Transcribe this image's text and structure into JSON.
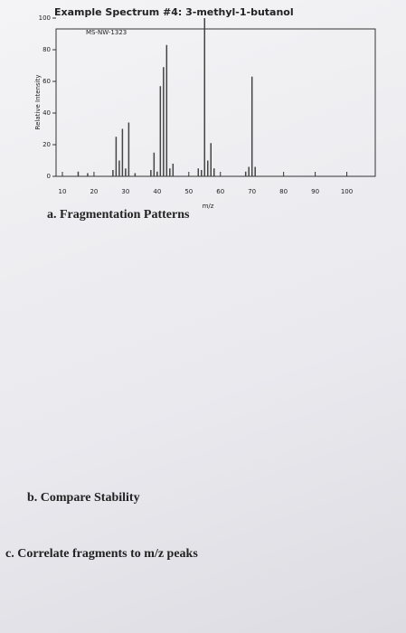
{
  "header": {
    "title": "Example Spectrum #4: 3-methyl-1-butanol"
  },
  "chart_data": {
    "type": "bar",
    "code": "MS-NW-1323",
    "xlabel": "m/z",
    "ylabel": "Relative Intensity",
    "x": [
      15,
      18,
      26,
      27,
      28,
      29,
      30,
      31,
      33,
      38,
      39,
      40,
      41,
      42,
      43,
      44,
      45,
      53,
      54,
      55,
      56,
      57,
      58,
      68,
      69,
      70,
      71
    ],
    "values": [
      3,
      2,
      4,
      25,
      10,
      30,
      5,
      34,
      2,
      4,
      15,
      3,
      57,
      69,
      83,
      5,
      8,
      5,
      4,
      100,
      10,
      21,
      5,
      3,
      6,
      63,
      6
    ],
    "color": "#444444",
    "xlim": [
      8,
      109
    ],
    "xticks": [
      10,
      20,
      30,
      40,
      50,
      60,
      70,
      80,
      90,
      100
    ],
    "ylim": [
      0,
      100
    ],
    "yticks": [
      0,
      20,
      40,
      60,
      80,
      100
    ]
  },
  "questions": [
    "a. Fragmentation Patterns",
    "b. Compare Stability",
    "c. Correlate fragments to m/z peaks"
  ]
}
